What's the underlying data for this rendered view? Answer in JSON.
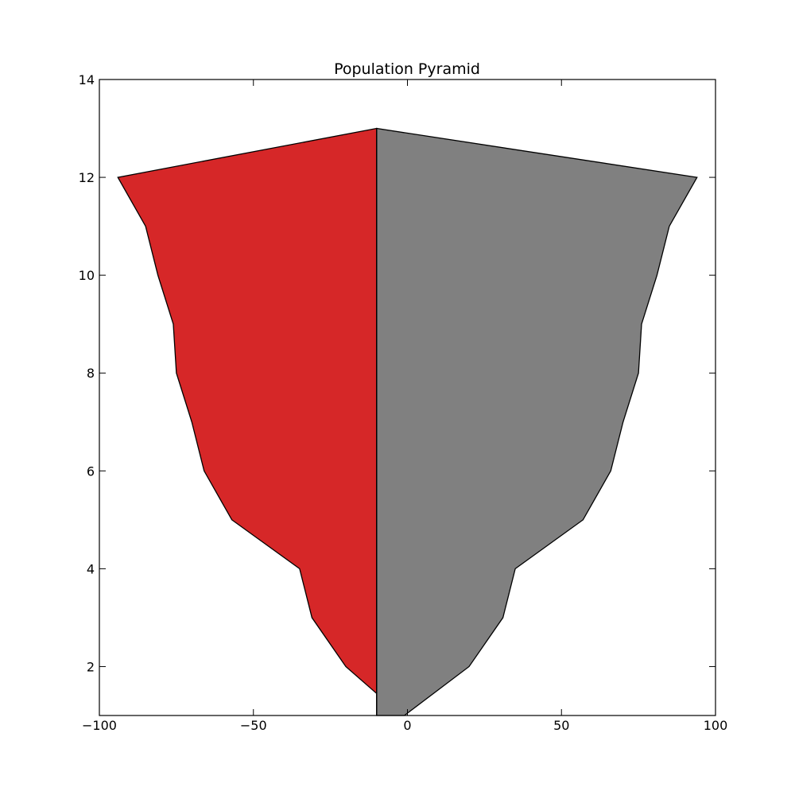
{
  "chart_data": {
    "type": "area",
    "title": "Population Pyramid",
    "xlabel": "",
    "ylabel": "",
    "xlim": [
      -100,
      100
    ],
    "ylim": [
      1,
      14
    ],
    "xticks": [
      -100,
      -50,
      0,
      50,
      100
    ],
    "xtick_labels": [
      "−100",
      "−50",
      "0",
      "50",
      "100"
    ],
    "yticks": [
      2,
      4,
      6,
      8,
      10,
      12,
      14
    ],
    "ytick_labels": [
      "2",
      "4",
      "6",
      "8",
      "10",
      "12",
      "14"
    ],
    "grid": false,
    "legend": "none",
    "series": [
      {
        "color": "#d62728",
        "points": [
          [
            -10,
            1.45
          ],
          [
            -20,
            2
          ],
          [
            -31,
            3
          ],
          [
            -35,
            4
          ],
          [
            -57,
            5
          ],
          [
            -66,
            6
          ],
          [
            -70,
            7
          ],
          [
            -75,
            8
          ],
          [
            -76,
            9
          ],
          [
            -81,
            10
          ],
          [
            -85,
            11
          ],
          [
            -94,
            12
          ],
          [
            -10,
            13
          ]
        ]
      },
      {
        "color": "#808080",
        "points": [
          [
            -1,
            1
          ],
          [
            20,
            2
          ],
          [
            31,
            3
          ],
          [
            35,
            4
          ],
          [
            57,
            5
          ],
          [
            66,
            6
          ],
          [
            70,
            7
          ],
          [
            75,
            8
          ],
          [
            76,
            9
          ],
          [
            81,
            10
          ],
          [
            85,
            11
          ],
          [
            94,
            12
          ],
          [
            -10,
            13
          ]
        ]
      }
    ],
    "divider_x": -10
  }
}
